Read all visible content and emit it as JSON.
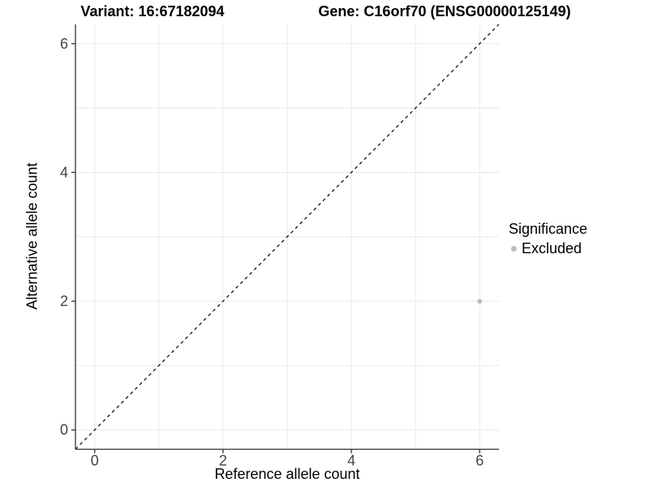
{
  "titles": {
    "variant": "Variant: 16:67182094",
    "gene": "Gene: C16orf70 (ENSG00000125149)"
  },
  "chart_data": {
    "type": "scatter",
    "title_left": "Variant: 16:67182094",
    "title_right": "Gene: C16orf70 (ENSG00000125149)",
    "xlabel": "Reference allele count",
    "ylabel": "Alternative allele count",
    "xlim": [
      -0.3,
      6.3
    ],
    "ylim": [
      -0.3,
      6.3
    ],
    "x_ticks": [
      0,
      2,
      4,
      6
    ],
    "y_ticks": [
      0,
      2,
      4,
      6
    ],
    "grid_values": [
      0,
      1,
      2,
      3,
      4,
      5,
      6
    ],
    "grid": true,
    "reference_line": {
      "slope": 1,
      "intercept": 0,
      "style": "dashed",
      "color": "#000000"
    },
    "legend": {
      "title": "Significance",
      "position": "right",
      "entries": [
        {
          "label": "Excluded",
          "color": "#bdbdbd"
        }
      ]
    },
    "series": [
      {
        "name": "Excluded",
        "color": "#bdbdbd",
        "points": [
          {
            "x": 6,
            "y": 2
          }
        ]
      }
    ]
  },
  "colors": {
    "axis": "#333333",
    "tick_label": "#444444",
    "grid": "#e8e8e8",
    "background": "#ffffff"
  }
}
